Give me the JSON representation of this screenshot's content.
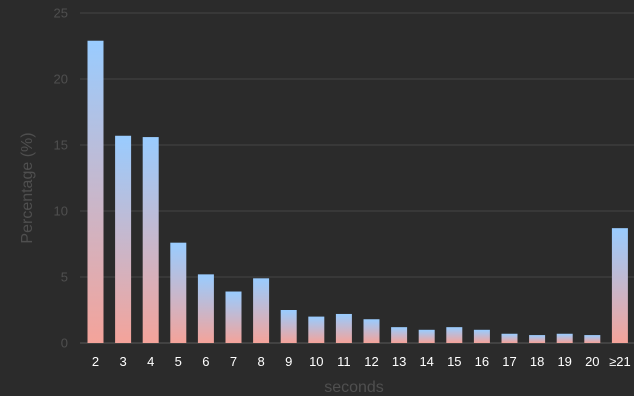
{
  "chart_data": {
    "type": "bar",
    "title": "",
    "xlabel": "seconds",
    "ylabel": "Percentage (%)",
    "ylim": [
      0,
      25
    ],
    "yticks": [
      0,
      5,
      10,
      15,
      20,
      25
    ],
    "grid": true,
    "legend": "none",
    "categories": [
      "2",
      "3",
      "4",
      "5",
      "6",
      "7",
      "8",
      "9",
      "10",
      "11",
      "12",
      "13",
      "14",
      "15",
      "16",
      "17",
      "18",
      "19",
      "20",
      "≥21"
    ],
    "values": [
      22.9,
      15.7,
      15.6,
      7.6,
      5.2,
      3.9,
      4.9,
      2.5,
      2.0,
      2.2,
      1.8,
      1.2,
      1.0,
      1.2,
      1.0,
      0.7,
      0.6,
      0.7,
      0.6,
      8.7
    ],
    "colors": {
      "bar_top": "#99ccff",
      "bar_bottom": "#f4a39a",
      "background": "#2b2b2b",
      "grid": "#444444",
      "axis_text": "#4f4f4f",
      "tick_text": "#ffffff"
    }
  }
}
